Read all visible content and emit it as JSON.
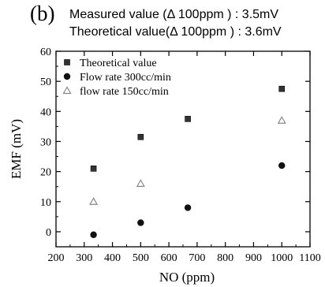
{
  "panel": {
    "label": "(b)",
    "note_measured": "Measured value (Δ 100ppm ) : 3.5mV",
    "note_theoretical": "Theoretical value(Δ 100ppm ) : 3.6mV"
  },
  "chart_data": {
    "type": "scatter",
    "xlabel": "NO (ppm)",
    "ylabel": "EMF (mV)",
    "xlim": [
      200,
      1100
    ],
    "ylim": [
      -5,
      60
    ],
    "xticks": [
      200,
      300,
      400,
      500,
      600,
      700,
      800,
      900,
      1000,
      1100
    ],
    "yticks": [
      0,
      10,
      20,
      30,
      40,
      50,
      60
    ],
    "grid": false,
    "legend_position": "top-left",
    "series": [
      {
        "name": "Theoretical value",
        "marker": "square",
        "color": "#333333",
        "points": [
          [
            333,
            21
          ],
          [
            500,
            31.5
          ],
          [
            667,
            37.5
          ],
          [
            1000,
            47.5
          ]
        ]
      },
      {
        "name": "Flow rate 300cc/min",
        "marker": "circle",
        "color": "#111111",
        "points": [
          [
            333,
            -1
          ],
          [
            500,
            3
          ],
          [
            667,
            8
          ],
          [
            1000,
            22
          ]
        ]
      },
      {
        "name": "flow rate 150cc/min",
        "marker": "triangle",
        "color": "#888888",
        "points": [
          [
            333,
            10
          ],
          [
            500,
            16
          ],
          [
            1000,
            37
          ]
        ]
      }
    ]
  }
}
